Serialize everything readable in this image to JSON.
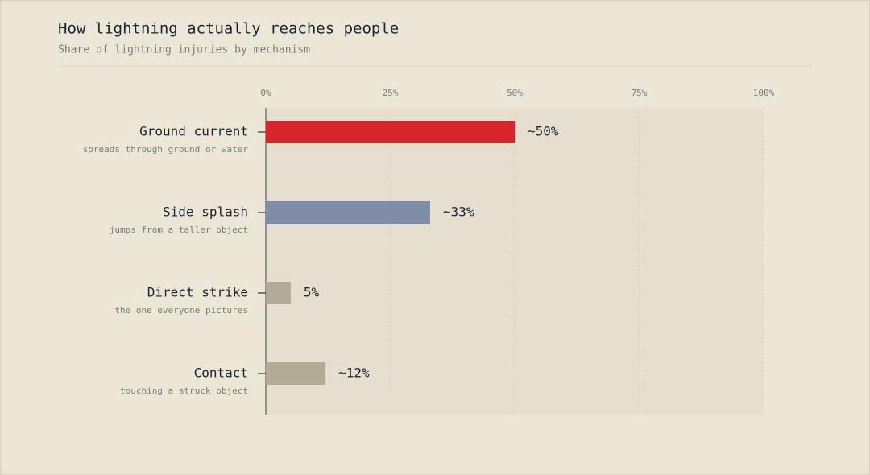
{
  "chart_data": {
    "type": "bar",
    "orientation": "horizontal",
    "title": "How lightning actually reaches people",
    "subtitle": "Share of lightning injuries by mechanism",
    "categories": [
      "Ground current",
      "Side splash",
      "Direct strike",
      "Contact"
    ],
    "descriptions": [
      "spreads through ground or water",
      "jumps from a taller object",
      "the one everyone pictures",
      "touching a struck object"
    ],
    "values": [
      50,
      33,
      5,
      12
    ],
    "value_labels": [
      "~50%",
      "~33%",
      "5%",
      "~12%"
    ],
    "colors": [
      "#d7262b",
      "#7f8ca8",
      "#b3ab98",
      "#b3ab98"
    ],
    "xlim": [
      0,
      100
    ],
    "xticks": [
      {
        "value": 0,
        "label": "0%"
      },
      {
        "value": 25,
        "label": "25%"
      },
      {
        "value": 50,
        "label": "50%"
      },
      {
        "value": 75,
        "label": "75%"
      },
      {
        "value": 100,
        "label": "100%"
      }
    ],
    "grid": true
  }
}
